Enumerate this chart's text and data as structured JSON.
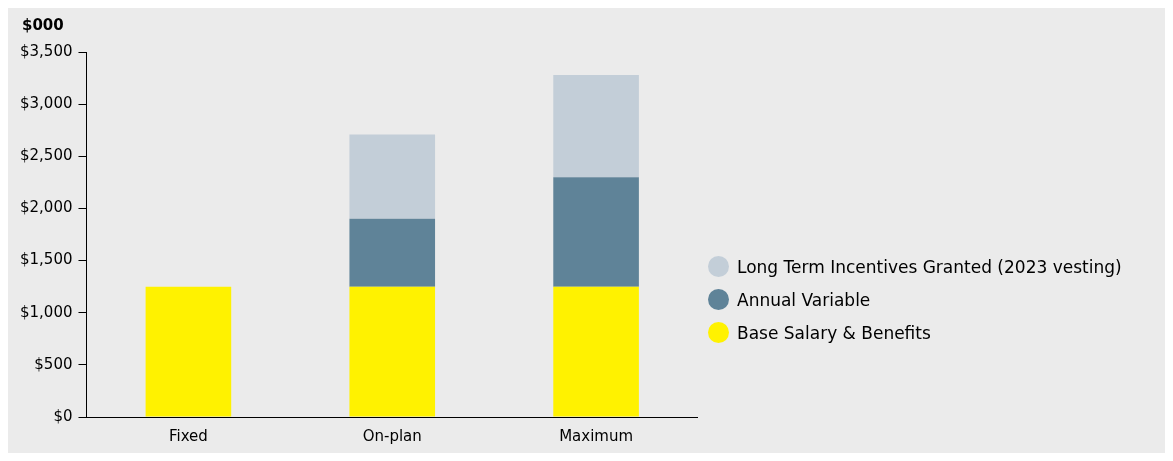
{
  "chart_data": {
    "type": "bar",
    "ylabel": "$000",
    "categories": [
      "Fixed",
      "On-plan",
      "Maximum"
    ],
    "stacked": true,
    "series": [
      {
        "name": "Base Salary & Benefits",
        "color": "#fff200",
        "values": [
          1250,
          1250,
          1250
        ]
      },
      {
        "name": "Annual Variable",
        "color": "#5f8398",
        "values": [
          null,
          650,
          1050
        ]
      },
      {
        "name": "Long Term Incentives Granted (2023 vesting)",
        "color": "#c3ced8",
        "values": [
          null,
          810,
          980
        ]
      }
    ],
    "ylim": [
      0,
      3500
    ],
    "yticks": [
      {
        "value": 0,
        "label": "$0"
      },
      {
        "value": 500,
        "label": "$500"
      },
      {
        "value": 1000,
        "label": "$1,000"
      },
      {
        "value": 1500,
        "label": "$1,500"
      },
      {
        "value": 2000,
        "label": "$2,000"
      },
      {
        "value": 2500,
        "label": "$2,500"
      },
      {
        "value": 3000,
        "label": "$3,000"
      },
      {
        "value": 3500,
        "label": "$3,500"
      }
    ],
    "grid": false,
    "legend": "right"
  }
}
